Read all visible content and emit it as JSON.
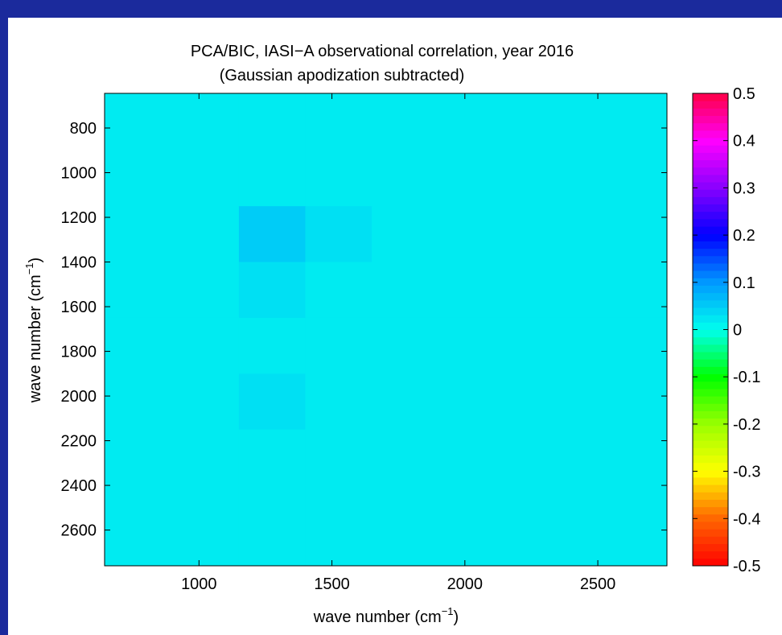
{
  "chart_data": {
    "type": "heatmap",
    "title": [
      "PCA/BIC, IASI−A observational correlation, year 2016",
      "(Gaussian apodization subtracted)"
    ],
    "xlabel": [
      "wave number (cm",
      "−1",
      ")"
    ],
    "ylabel": [
      "wave number (cm",
      "−1",
      ")"
    ],
    "x_edges": [
      645,
      900,
      1150,
      1400,
      1650,
      1900,
      2150,
      2400,
      2760
    ],
    "y_edges": [
      645,
      900,
      1150,
      1400,
      1650,
      1900,
      2150,
      2400,
      2760
    ],
    "z": [
      [
        0.02,
        0.02,
        0.02,
        0.02,
        0.02,
        0.02,
        0.02,
        0.02
      ],
      [
        0.02,
        0.02,
        0.02,
        0.02,
        0.02,
        0.02,
        0.02,
        0.02
      ],
      [
        0.02,
        0.02,
        0.05,
        0.03,
        0.02,
        0.02,
        0.02,
        0.02
      ],
      [
        0.02,
        0.02,
        0.03,
        0.02,
        0.02,
        0.02,
        0.02,
        0.02
      ],
      [
        0.02,
        0.02,
        0.02,
        0.02,
        0.02,
        0.02,
        0.02,
        0.02
      ],
      [
        0.02,
        0.02,
        0.03,
        0.02,
        0.02,
        0.02,
        0.02,
        0.02
      ],
      [
        0.02,
        0.02,
        0.02,
        0.02,
        0.02,
        0.02,
        0.02,
        0.02
      ],
      [
        0.02,
        0.02,
        0.02,
        0.02,
        0.02,
        0.02,
        0.02,
        0.02
      ]
    ],
    "xlim": [
      645,
      2760
    ],
    "xticks": [
      1000,
      1500,
      2000,
      2500
    ],
    "ylim": [
      645,
      2760
    ],
    "yticks": [
      800,
      1000,
      1200,
      1400,
      1600,
      1800,
      2000,
      2200,
      2400,
      2600
    ],
    "y_reversed": true,
    "colorbar": {
      "lim": [
        -0.5,
        0.5
      ],
      "ticks": [
        0.5,
        0.4,
        0.3,
        0.2,
        0.1,
        0,
        -0.1,
        -0.2,
        -0.3,
        -0.4,
        -0.5
      ],
      "colors": [
        "#ff0000",
        "#ff6600",
        "#ffff00",
        "#99ff00",
        "#00ff00",
        "#00ffee",
        "#0099ff",
        "#0000ff",
        "#8800ff",
        "#ff00ff",
        "#ff0044"
      ]
    }
  }
}
